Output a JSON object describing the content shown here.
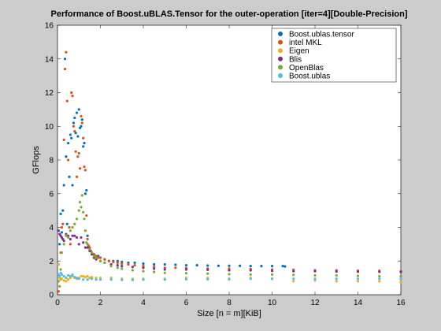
{
  "chart_data": {
    "type": "scatter",
    "title": "Performance of Boost.uBLAS.Tensor for the outer-operation [iter=4][Double-Precision]",
    "xlabel": "Size [n = m][KiB]",
    "ylabel": "GFlops",
    "xlim": [
      0,
      16
    ],
    "ylim": [
      0,
      16
    ],
    "xticks": [
      "0",
      "2",
      "4",
      "6",
      "8",
      "10",
      "12",
      "14",
      "16"
    ],
    "yticks": [
      "0",
      "2",
      "4",
      "6",
      "8",
      "10",
      "12",
      "14",
      "16"
    ],
    "grid": false,
    "legend_position": "top-right",
    "series": [
      {
        "name": "Boost.ublas.tensor",
        "color": "#0072bd",
        "x": [
          0.05,
          0.1,
          0.15,
          0.2,
          0.25,
          0.3,
          0.35,
          0.4,
          0.45,
          0.5,
          0.55,
          0.6,
          0.65,
          0.7,
          0.75,
          0.8,
          0.85,
          0.9,
          0.95,
          1.0,
          1.05,
          1.1,
          1.15,
          1.2,
          1.25,
          1.3,
          1.35,
          1.4,
          1.45,
          1.5,
          1.55,
          1.6,
          1.7,
          1.8,
          1.9,
          2.0,
          2.2,
          2.4,
          2.6,
          2.8,
          3.0,
          3.3,
          3.6,
          4.0,
          4.5,
          5.0,
          5.5,
          6.0,
          6.5,
          7.0,
          7.5,
          8.0,
          8.5,
          9.0,
          9.5,
          10.0,
          10.5,
          10.6
        ],
        "y": [
          1.8,
          3.0,
          4.8,
          3.7,
          5.0,
          6.5,
          14.0,
          8.2,
          4.2,
          9.0,
          7.0,
          9.5,
          9.3,
          6.5,
          10.2,
          10.5,
          9.6,
          10.8,
          9.4,
          11.0,
          9.9,
          10.0,
          10.4,
          8.8,
          9.0,
          6.0,
          6.2,
          3.5,
          2.9,
          2.7,
          2.6,
          2.5,
          2.4,
          2.3,
          2.3,
          2.2,
          2.1,
          2.0,
          2.0,
          2.0,
          1.95,
          1.9,
          1.9,
          1.85,
          1.8,
          1.8,
          1.78,
          1.75,
          1.75,
          1.73,
          1.72,
          1.72,
          1.72,
          1.7,
          1.7,
          1.7,
          1.7,
          1.68
        ]
      },
      {
        "name": "intel MKL",
        "color": "#d95319",
        "x": [
          0.05,
          0.1,
          0.15,
          0.2,
          0.25,
          0.3,
          0.35,
          0.4,
          0.45,
          0.5,
          0.55,
          0.6,
          0.65,
          0.7,
          0.75,
          0.8,
          0.85,
          0.9,
          0.95,
          1.0,
          1.05,
          1.1,
          1.15,
          1.2,
          1.25,
          1.3,
          1.35,
          1.4,
          1.45,
          1.5,
          1.55,
          1.6,
          1.7,
          1.8,
          1.9,
          2.0,
          2.2,
          2.4,
          2.6,
          2.8,
          3.0,
          3.3,
          3.6,
          4.0,
          4.5,
          5.0,
          5.5,
          6.0,
          7.0,
          8.0,
          9.0,
          10.0,
          11.0,
          12.0,
          13.0,
          14.0,
          15.0,
          16.0
        ],
        "y": [
          0.2,
          1.0,
          2.5,
          4.0,
          4.2,
          9.2,
          13.4,
          14.4,
          11.5,
          8.0,
          4.0,
          3.0,
          12.0,
          11.8,
          10.0,
          9.7,
          8.5,
          7.0,
          8.2,
          8.4,
          7.5,
          10.6,
          10.2,
          9.3,
          7.6,
          7.4,
          4.7,
          3.3,
          2.9,
          2.8,
          2.6,
          2.5,
          2.4,
          2.3,
          2.2,
          2.2,
          2.1,
          2.0,
          1.95,
          1.9,
          1.85,
          1.8,
          1.75,
          1.7,
          1.65,
          1.6,
          1.6,
          1.58,
          1.55,
          1.55,
          1.52,
          1.5,
          1.48,
          1.45,
          1.45,
          1.43,
          1.42,
          1.4
        ]
      },
      {
        "name": "Eigen",
        "color": "#edb120",
        "x": [
          0.05,
          0.1,
          0.15,
          0.2,
          0.3,
          0.4,
          0.5,
          0.6,
          0.7,
          0.8,
          0.9,
          1.0,
          1.1,
          1.2,
          1.3,
          1.4,
          1.5,
          1.6,
          1.8,
          2.0,
          2.5,
          3.0,
          3.5,
          4.0,
          5.0,
          6.0,
          7.0,
          8.0,
          9.0,
          10.0,
          11.0,
          12.0,
          13.0,
          14.0,
          15.0,
          16.0
        ],
        "y": [
          1.8,
          1.0,
          0.9,
          0.95,
          0.85,
          0.8,
          0.9,
          1.0,
          1.1,
          1.0,
          0.95,
          1.0,
          1.1,
          1.1,
          1.05,
          1.1,
          1.0,
          1.05,
          1.0,
          1.0,
          1.0,
          0.95,
          0.95,
          0.95,
          0.95,
          1.0,
          1.0,
          0.9,
          1.0,
          0.95,
          0.8,
          0.85,
          0.8,
          0.8,
          0.8,
          0.75
        ]
      },
      {
        "name": "Blis",
        "color": "#7e2f8e",
        "x": [
          0.05,
          0.1,
          0.15,
          0.2,
          0.25,
          0.3,
          0.4,
          0.5,
          0.6,
          0.7,
          0.8,
          0.9,
          1.0,
          1.1,
          1.2,
          1.3,
          1.4,
          1.5,
          1.6,
          1.7,
          1.8,
          2.0,
          2.2,
          2.5,
          2.8,
          3.0,
          3.5,
          4.0,
          4.5,
          5.0,
          6.0,
          7.0,
          8.0,
          9.0,
          10.0,
          11.0,
          12.0,
          13.0,
          14.0,
          15.0,
          16.0
        ],
        "y": [
          3.8,
          3.6,
          3.5,
          3.4,
          3.3,
          3.2,
          3.6,
          3.5,
          3.3,
          3.5,
          3.5,
          3.4,
          3.0,
          3.4,
          3.1,
          2.8,
          2.8,
          2.6,
          2.4,
          2.2,
          2.1,
          2.0,
          1.9,
          1.8,
          1.75,
          1.7,
          1.65,
          1.6,
          1.55,
          1.5,
          1.5,
          1.48,
          1.45,
          1.45,
          1.42,
          1.4,
          1.4,
          1.38,
          1.37,
          1.36,
          1.35
        ]
      },
      {
        "name": "OpenBlas",
        "color": "#77ac30",
        "x": [
          0.05,
          0.1,
          0.15,
          0.2,
          0.3,
          0.4,
          0.5,
          0.6,
          0.7,
          0.8,
          0.9,
          1.0,
          1.05,
          1.1,
          1.15,
          1.2,
          1.25,
          1.3,
          1.35,
          1.4,
          1.5,
          1.6,
          1.7,
          1.8,
          2.0,
          2.2,
          2.5,
          2.8,
          3.0,
          3.5,
          4.0,
          4.5,
          5.0,
          6.0,
          7.0,
          8.0,
          9.0,
          10.0,
          11.0,
          12.0,
          13.0,
          14.0,
          15.0,
          16.0
        ],
        "y": [
          0.8,
          0.5,
          1.5,
          2.5,
          3.0,
          3.5,
          3.4,
          3.8,
          4.0,
          4.2,
          4.5,
          5.0,
          5.5,
          5.2,
          5.9,
          4.9,
          4.5,
          3.8,
          3.1,
          3.0,
          2.7,
          2.5,
          2.3,
          2.2,
          2.0,
          1.9,
          1.7,
          1.6,
          1.55,
          1.45,
          1.4,
          1.35,
          1.3,
          1.28,
          1.25,
          1.22,
          1.2,
          1.2,
          1.18,
          1.15,
          1.15,
          1.12,
          1.1,
          1.1
        ]
      },
      {
        "name": "Boost.ublas",
        "color": "#4dbeee",
        "x": [
          0.05,
          0.1,
          0.15,
          0.2,
          0.3,
          0.4,
          0.5,
          0.6,
          0.7,
          0.8,
          0.9,
          1.0,
          1.2,
          1.4,
          1.6,
          1.8,
          2.0,
          2.5,
          3.0,
          3.5,
          4.0,
          5.0,
          6.0,
          7.0,
          8.0,
          9.0,
          10.0,
          11.0,
          12.0,
          13.0,
          14.0,
          15.0,
          16.0
        ],
        "y": [
          1.2,
          1.1,
          1.3,
          1.2,
          1.1,
          1.0,
          1.15,
          1.1,
          1.2,
          1.05,
          1.0,
          0.95,
          0.9,
          0.9,
          0.95,
          0.9,
          0.9,
          0.9,
          0.88,
          0.88,
          0.9,
          0.9,
          0.92,
          0.92,
          0.95,
          0.95,
          0.95,
          0.95,
          0.95,
          0.95,
          0.95,
          0.95,
          0.95
        ]
      }
    ]
  }
}
